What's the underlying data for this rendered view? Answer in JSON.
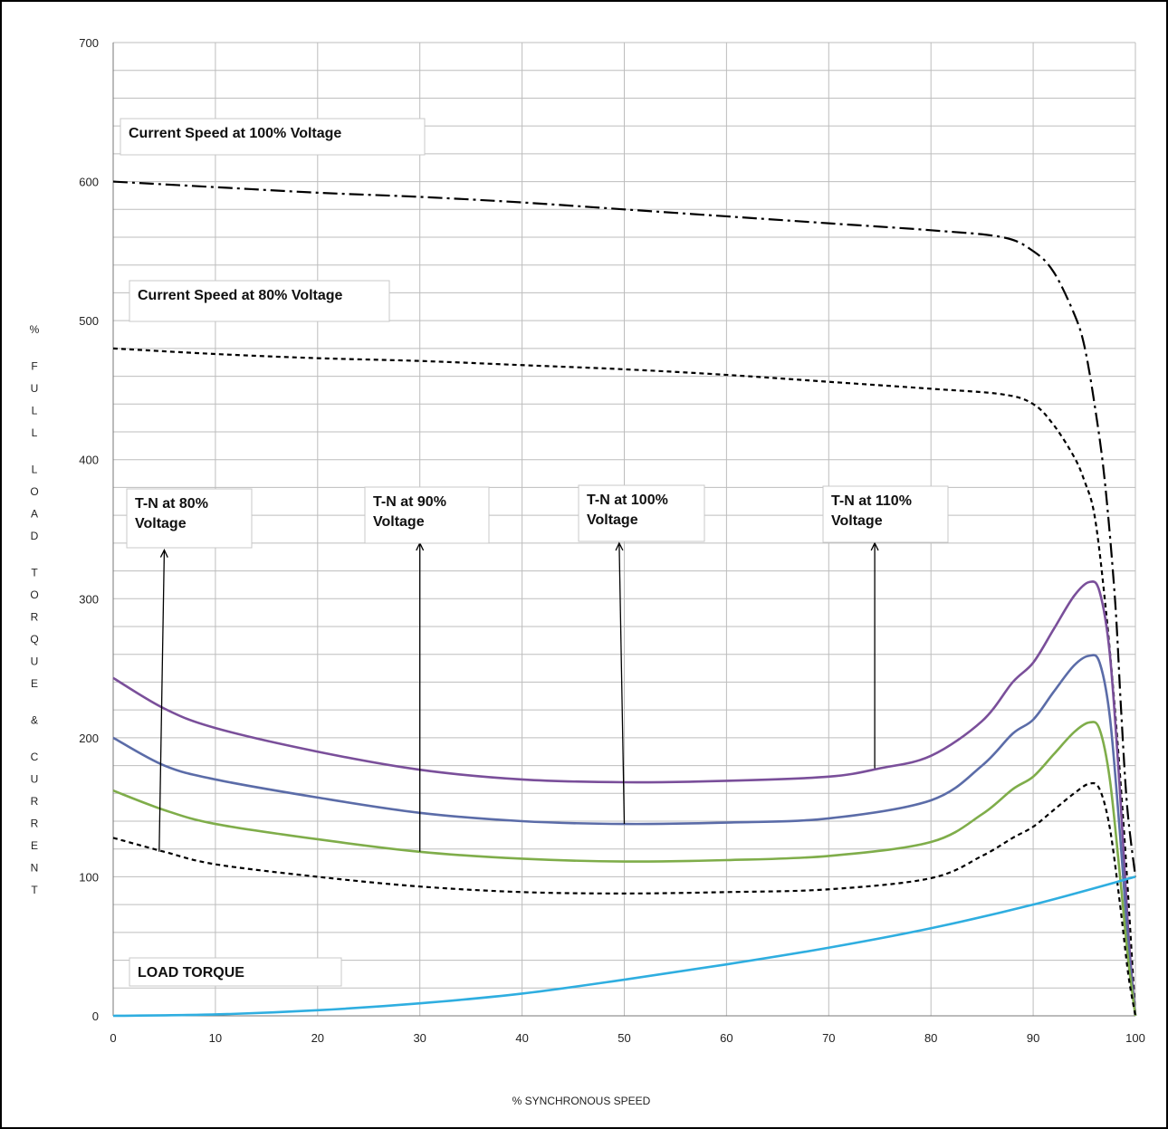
{
  "chart_data": {
    "type": "line",
    "xlabel": "% SYNCHRONOUS SPEED",
    "ylabel": "% FULL LOAD TORQUE & CURRENT",
    "xlim": [
      0,
      100
    ],
    "ylim": [
      0,
      700
    ],
    "x_ticks": [
      0,
      10,
      20,
      30,
      40,
      50,
      60,
      70,
      80,
      90,
      100
    ],
    "y_ticks": [
      0,
      100,
      200,
      300,
      400,
      500,
      600,
      700
    ],
    "grid": {
      "x_minor_step": 10,
      "y_minor_step": 20
    },
    "series": [
      {
        "name": "Current Speed at 100% Voltage",
        "color": "#000000",
        "style": "dashdot",
        "points": [
          [
            0,
            600
          ],
          [
            10,
            596
          ],
          [
            20,
            592
          ],
          [
            30,
            589
          ],
          [
            40,
            585
          ],
          [
            50,
            580
          ],
          [
            60,
            575
          ],
          [
            70,
            570
          ],
          [
            80,
            565
          ],
          [
            87,
            560
          ],
          [
            90,
            550
          ],
          [
            92,
            535
          ],
          [
            94,
            505
          ],
          [
            95,
            482
          ],
          [
            96,
            440
          ],
          [
            97,
            385
          ],
          [
            98,
            300
          ],
          [
            98.6,
            220
          ],
          [
            99.2,
            150
          ],
          [
            100,
            100
          ]
        ]
      },
      {
        "name": "Current Speed at 80% Voltage",
        "color": "#000000",
        "style": "dashed",
        "points": [
          [
            0,
            480
          ],
          [
            10,
            476
          ],
          [
            20,
            473
          ],
          [
            30,
            471
          ],
          [
            40,
            468
          ],
          [
            50,
            465
          ],
          [
            60,
            461
          ],
          [
            70,
            456
          ],
          [
            80,
            451
          ],
          [
            87,
            447
          ],
          [
            90,
            440
          ],
          [
            92,
            425
          ],
          [
            94,
            402
          ],
          [
            95,
            385
          ],
          [
            96,
            360
          ],
          [
            97,
            300
          ],
          [
            98,
            220
          ],
          [
            99,
            120
          ],
          [
            100,
            0
          ]
        ]
      },
      {
        "name": "T-N at 110% Voltage",
        "color": "#7a4f9a",
        "style": "solid",
        "points": [
          [
            0,
            243
          ],
          [
            5,
            221
          ],
          [
            10,
            207
          ],
          [
            20,
            190
          ],
          [
            30,
            177
          ],
          [
            40,
            170
          ],
          [
            50,
            168
          ],
          [
            60,
            169
          ],
          [
            70,
            172
          ],
          [
            75,
            178
          ],
          [
            80,
            187
          ],
          [
            85,
            212
          ],
          [
            88,
            240
          ],
          [
            90,
            254
          ],
          [
            92,
            278
          ],
          [
            94,
            302
          ],
          [
            95.5,
            312
          ],
          [
            96.5,
            305
          ],
          [
            97.5,
            260
          ],
          [
            98.5,
            160
          ],
          [
            99.3,
            60
          ],
          [
            100,
            0
          ]
        ]
      },
      {
        "name": "T-N at 100% Voltage",
        "color": "#5b6ca8",
        "style": "solid",
        "points": [
          [
            0,
            200
          ],
          [
            5,
            180
          ],
          [
            10,
            170
          ],
          [
            20,
            157
          ],
          [
            30,
            146
          ],
          [
            40,
            140
          ],
          [
            50,
            138
          ],
          [
            60,
            139
          ],
          [
            70,
            142
          ],
          [
            80,
            155
          ],
          [
            85,
            180
          ],
          [
            88,
            203
          ],
          [
            90,
            213
          ],
          [
            92,
            233
          ],
          [
            94,
            252
          ],
          [
            95.5,
            259
          ],
          [
            96.5,
            254
          ],
          [
            97.5,
            215
          ],
          [
            98.5,
            130
          ],
          [
            99.3,
            50
          ],
          [
            100,
            0
          ]
        ]
      },
      {
        "name": "T-N at 90% Voltage",
        "color": "#7fad4a",
        "style": "solid",
        "points": [
          [
            0,
            162
          ],
          [
            5,
            148
          ],
          [
            10,
            138
          ],
          [
            20,
            127
          ],
          [
            30,
            118
          ],
          [
            40,
            113
          ],
          [
            50,
            111
          ],
          [
            60,
            112
          ],
          [
            70,
            115
          ],
          [
            80,
            125
          ],
          [
            85,
            145
          ],
          [
            88,
            163
          ],
          [
            90,
            172
          ],
          [
            92,
            188
          ],
          [
            94,
            204
          ],
          [
            95.5,
            211
          ],
          [
            96.5,
            206
          ],
          [
            97.5,
            170
          ],
          [
            98.5,
            100
          ],
          [
            99.3,
            40
          ],
          [
            100,
            0
          ]
        ]
      },
      {
        "name": "T-N at 80% Voltage",
        "color": "#000000",
        "style": "dashed",
        "points": [
          [
            0,
            128
          ],
          [
            5,
            118
          ],
          [
            10,
            109
          ],
          [
            20,
            100
          ],
          [
            30,
            93
          ],
          [
            40,
            89
          ],
          [
            50,
            88
          ],
          [
            60,
            89
          ],
          [
            70,
            91
          ],
          [
            80,
            99
          ],
          [
            85,
            115
          ],
          [
            88,
            128
          ],
          [
            90,
            136
          ],
          [
            92,
            148
          ],
          [
            94,
            160
          ],
          [
            95.5,
            167
          ],
          [
            96.5,
            163
          ],
          [
            97.5,
            135
          ],
          [
            98.5,
            80
          ],
          [
            99.3,
            30
          ],
          [
            100,
            0
          ]
        ]
      },
      {
        "name": "LOAD TORQUE",
        "color": "#2faee0",
        "style": "solid",
        "points": [
          [
            0,
            0
          ],
          [
            10,
            1
          ],
          [
            20,
            4
          ],
          [
            30,
            9
          ],
          [
            40,
            16
          ],
          [
            50,
            26
          ],
          [
            60,
            37
          ],
          [
            70,
            49
          ],
          [
            80,
            63
          ],
          [
            90,
            80
          ],
          [
            100,
            100
          ]
        ]
      }
    ],
    "annotations": [
      {
        "lines": [
          "Current Speed at 100% Voltage"
        ]
      },
      {
        "lines": [
          "Current Speed at 80% Voltage"
        ]
      },
      {
        "lines": [
          "T-N at 80%",
          "Voltage"
        ],
        "arrow_from": [
          4.5,
          118
        ],
        "arrow_to": [
          5,
          335
        ]
      },
      {
        "lines": [
          "T-N at 90%",
          "Voltage"
        ],
        "arrow_from": [
          30,
          118
        ],
        "arrow_to": [
          30,
          340
        ]
      },
      {
        "lines": [
          "T-N at 100%",
          "Voltage"
        ],
        "arrow_from": [
          50,
          138
        ],
        "arrow_to": [
          49.5,
          340
        ]
      },
      {
        "lines": [
          "T-N at 110%",
          "Voltage"
        ],
        "arrow_from": [
          74.5,
          178
        ],
        "arrow_to": [
          74.5,
          340
        ]
      },
      {
        "lines": [
          "LOAD TORQUE"
        ]
      }
    ]
  }
}
